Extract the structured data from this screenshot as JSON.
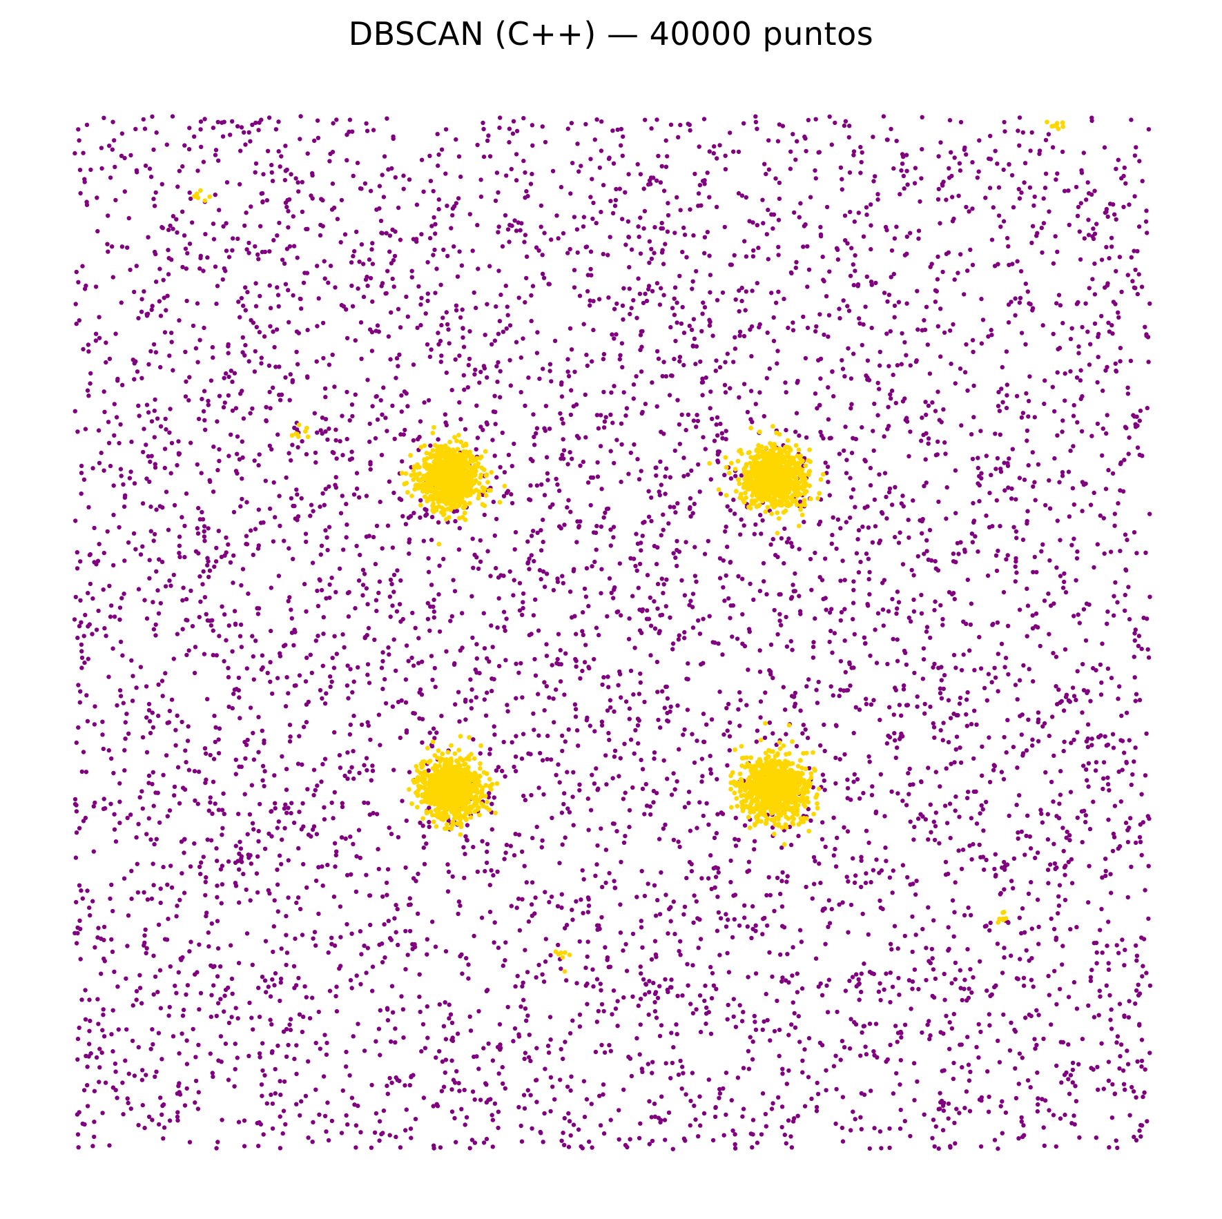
{
  "chart_data": {
    "type": "scatter",
    "title": "DBSCAN (C++) — 40000 puntos",
    "xlabel": "",
    "ylabel": "",
    "axes_visible": false,
    "grid": false,
    "legend": "none",
    "xlim": [
      0,
      100
    ],
    "ylim": [
      0,
      100
    ],
    "total_points": 40000,
    "colors": {
      "noise": "#800080",
      "cluster": "#FFD700"
    },
    "series": [
      {
        "role": "noise",
        "distribution": "uniform",
        "x_range": [
          0,
          100
        ],
        "y_range": [
          0,
          100
        ],
        "rendered_sample": 6000,
        "seed": 7
      },
      {
        "role": "cluster",
        "blobs": [
          {
            "cx": 35,
            "cy": 65,
            "sd": 1.4,
            "n": 900
          },
          {
            "cx": 65,
            "cy": 65,
            "sd": 1.4,
            "n": 900
          },
          {
            "cx": 35,
            "cy": 35,
            "sd": 1.4,
            "n": 900
          },
          {
            "cx": 65,
            "cy": 35,
            "sd": 1.5,
            "n": 900
          }
        ],
        "small_clusters": [
          {
            "cx": 11.5,
            "cy": 92.2,
            "sd": 0.45,
            "n": 8
          },
          {
            "cx": 91.2,
            "cy": 99.1,
            "sd": 0.45,
            "n": 8
          },
          {
            "cx": 21.0,
            "cy": 69.4,
            "sd": 0.45,
            "n": 8
          },
          {
            "cx": 45.0,
            "cy": 19.0,
            "sd": 0.5,
            "n": 7
          },
          {
            "cx": 86.3,
            "cy": 22.4,
            "sd": 0.4,
            "n": 8
          }
        ]
      }
    ]
  }
}
